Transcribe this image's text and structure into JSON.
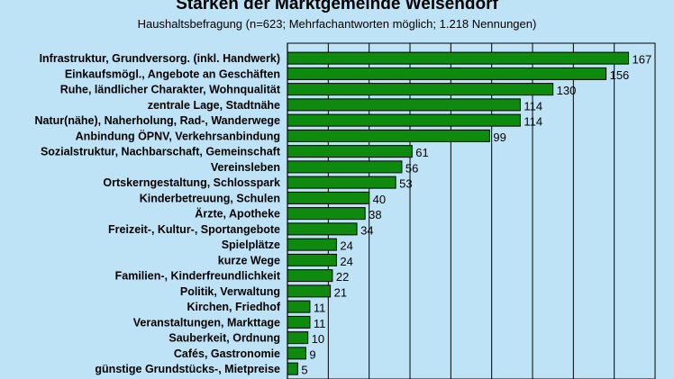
{
  "chart_data": {
    "type": "bar",
    "orientation": "horizontal",
    "title": "Stärken der Marktgemeinde Weisendorf",
    "subtitle": "Haushaltsbefragung  (n=623; Mehrfachantworten  möglich; 1.218 Nennungen)",
    "categories": [
      "Infrastruktur, Grundversorg. (inkl. Handwerk)",
      "Einkaufsmögl., Angebote an Geschäften",
      "Ruhe, ländlicher Charakter, Wohnqualität",
      "zentrale Lage, Stadtnähe",
      "Natur(nähe), Naherholung, Rad-, Wanderwege",
      "Anbindung ÖPNV, Verkehrsanbindung",
      "Sozialstruktur, Nachbarschaft, Gemeinschaft",
      "Vereinsleben",
      "Ortskerngestaltung, Schlosspark",
      "Kinderbetreuung, Schulen",
      "Ärzte, Apotheke",
      "Freizeit-, Kultur-, Sportangebote",
      "Spielplätze",
      "kurze Wege",
      "Familien-, Kinderfreundlichkeit",
      "Politik, Verwaltung",
      "Kirchen, Friedhof",
      "Veranstaltungen, Markttage",
      "Sauberkeit, Ordnung",
      "Cafés, Gastronomie",
      "günstige Grundstücks-, Mietpreise"
    ],
    "values": [
      167,
      156,
      130,
      114,
      114,
      99,
      61,
      56,
      53,
      40,
      38,
      34,
      24,
      24,
      22,
      21,
      11,
      11,
      10,
      9,
      5
    ],
    "xlim": [
      0,
      180
    ],
    "grid": true,
    "bar_color": "#0e8a0e",
    "background_color": "#bfe3f6"
  }
}
